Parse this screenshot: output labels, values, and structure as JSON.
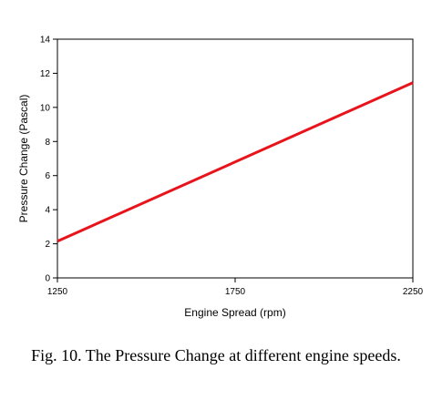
{
  "chart_data": {
    "type": "line",
    "title": "",
    "xlabel": "Engine Spread (rpm)",
    "ylabel": "Pressure Change (Pascal)",
    "xlim": [
      1250,
      2250
    ],
    "ylim": [
      0,
      14
    ],
    "x_ticks": [
      "1250",
      "1750",
      "2250"
    ],
    "y_ticks": [
      "0",
      "2",
      "4",
      "6",
      "8",
      "10",
      "12",
      "14"
    ],
    "grid": false,
    "legend": "none",
    "series": [
      {
        "color": "#e8141b",
        "x": [
          1250,
          2250
        ],
        "y": [
          2.15,
          11.45
        ]
      }
    ]
  },
  "caption": "Fig. 10. The Pressure Change at different engine speeds."
}
